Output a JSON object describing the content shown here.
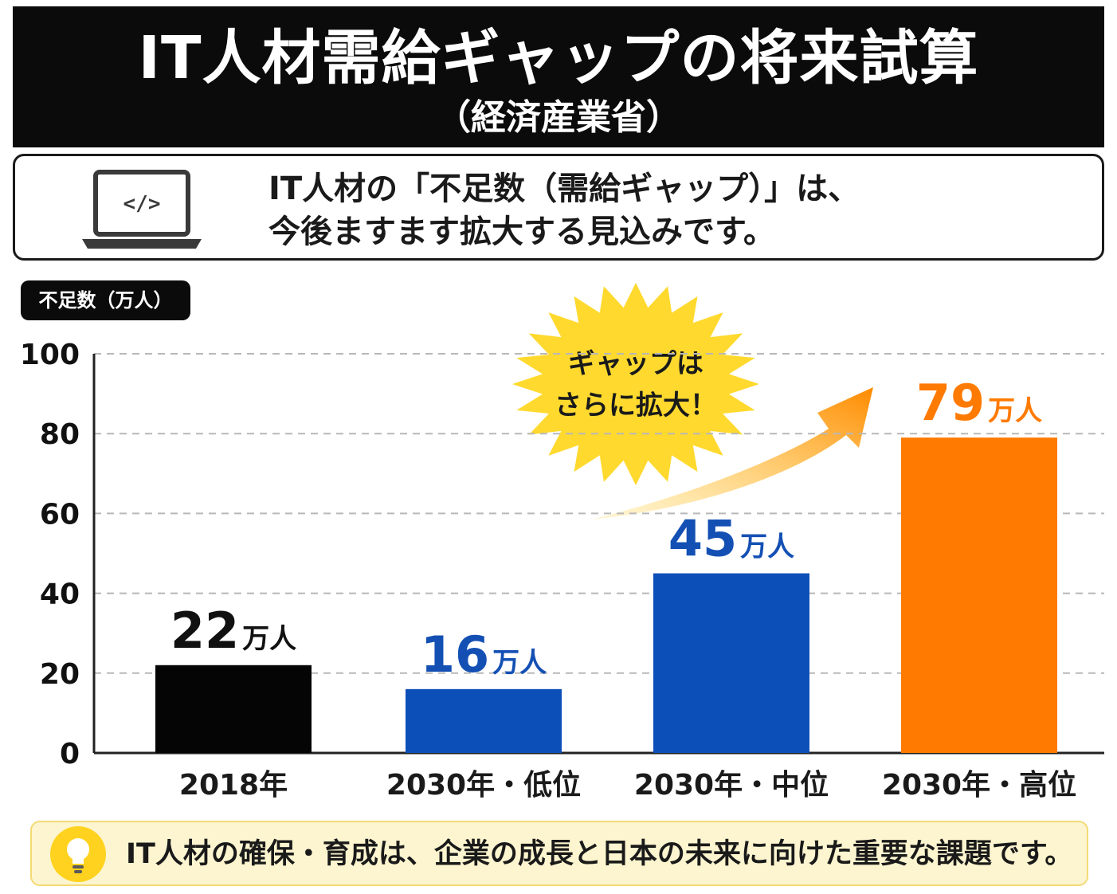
{
  "header": {
    "title": "IT人材需給ギャップの将来試算",
    "subtitle": "（経済産業省）"
  },
  "info": {
    "line1": "IT人材の「不足数（需給ギャップ）」は、",
    "line2": "今後ますます拡大する見込みです。",
    "icon": "laptop-code-icon"
  },
  "chart_data": {
    "type": "bar",
    "ylabel": "不足数（万人）",
    "ylim": [
      0,
      100
    ],
    "yticks": [
      0,
      20,
      40,
      60,
      80,
      100
    ],
    "grid": true,
    "categories": [
      "2018年",
      "2030年・低位",
      "2030年・中位",
      "2030年・高位"
    ],
    "values": [
      22,
      16,
      45,
      79
    ],
    "value_labels": [
      "22",
      "16",
      "45",
      "79"
    ],
    "unit": "万人",
    "colors": [
      "#050505",
      "#0d4fb8",
      "#0d4fb8",
      "#ff7a00"
    ],
    "label_colors": [
      "#111111",
      "#1450b4",
      "#1450b4",
      "#ff7a00"
    ],
    "annotation": {
      "line1": "ギャップは",
      "line2": "さらに拡大！",
      "burst_color": "#ffd92e",
      "arrow_color": "#ff8a00"
    }
  },
  "tip": {
    "text": "IT人材の確保・育成は、企業の成長と日本の未来に向けた重要な課題です。",
    "icon": "lightbulb-icon"
  }
}
